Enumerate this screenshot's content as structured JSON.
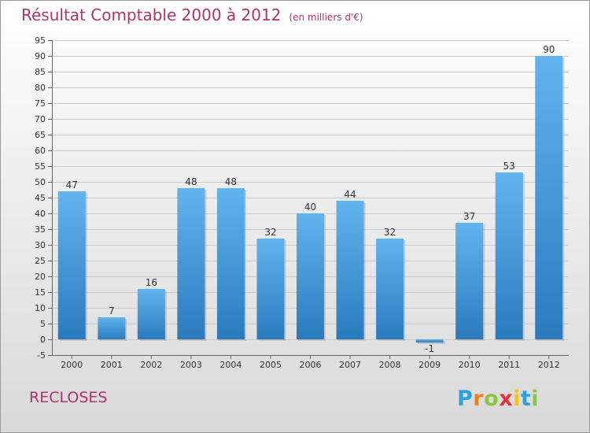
{
  "title": "Résultat Comptable 2000 à 2012",
  "subtitle": "(en milliers d'€)",
  "commune": "RECLOSES",
  "logo": {
    "letters": [
      "P",
      "r",
      "o",
      "x",
      "i",
      "t",
      "i"
    ],
    "colors": [
      "#2aa3dc",
      "#f07f1a",
      "#8cc63f",
      "#e5333b",
      "#f0c419",
      "#2aa3dc",
      "#8cc63f"
    ]
  },
  "colors": {
    "bar_top": "#62b4ee",
    "bar_bottom": "#2a7bbd",
    "title": "#b0336a"
  },
  "chart_data": {
    "type": "bar",
    "categories": [
      "2000",
      "2001",
      "2002",
      "2003",
      "2004",
      "2005",
      "2006",
      "2007",
      "2008",
      "2009",
      "2010",
      "2011",
      "2012"
    ],
    "values": [
      47,
      7,
      16,
      48,
      48,
      32,
      40,
      44,
      32,
      -1,
      37,
      53,
      90
    ],
    "data_labels": [
      "47",
      "7",
      "16",
      "48",
      "48",
      "32",
      "40",
      "44",
      "32",
      "-1",
      "37",
      "53",
      "90"
    ],
    "ylim": [
      -5,
      95
    ],
    "yticks": [
      -5,
      0,
      5,
      10,
      15,
      20,
      25,
      30,
      35,
      40,
      45,
      50,
      55,
      60,
      65,
      70,
      75,
      80,
      85,
      90,
      95
    ],
    "grid": true,
    "legend": "none"
  }
}
